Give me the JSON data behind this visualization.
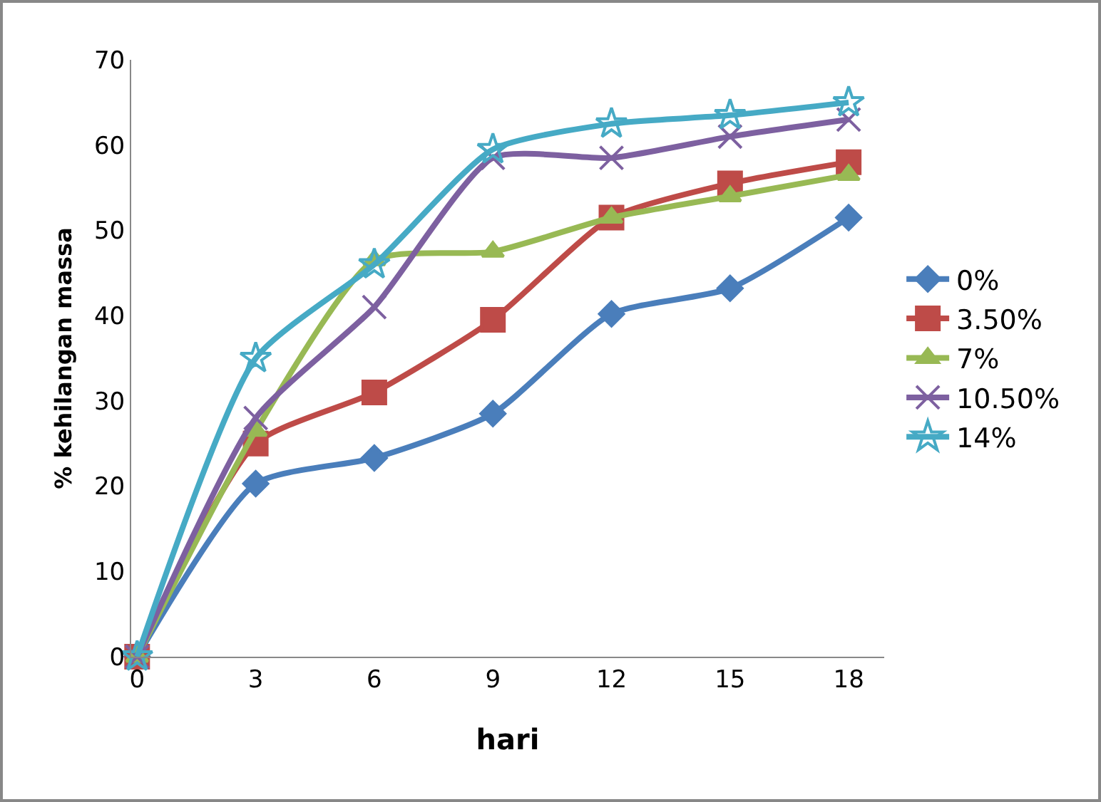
{
  "chart_data": {
    "type": "line",
    "xlabel": "hari",
    "ylabel": "% kehilangan massa",
    "categories": [
      "0",
      "3",
      "6",
      "9",
      "12",
      "15",
      "18"
    ],
    "ylim": [
      0,
      70
    ],
    "yticks": [
      0,
      10,
      20,
      30,
      40,
      50,
      60,
      70
    ],
    "grid": false,
    "legend": "right",
    "series": [
      {
        "name": "0%",
        "color": "#4a7ebb",
        "marker": "diamond",
        "values": [
          0,
          20.3,
          23.3,
          28.5,
          40.2,
          43.2,
          51.5
        ]
      },
      {
        "name": "3.50%",
        "color": "#be4b48",
        "marker": "square",
        "values": [
          0,
          25,
          31,
          39.5,
          51.5,
          55.5,
          58
        ]
      },
      {
        "name": "7%",
        "color": "#98b954",
        "marker": "triangle",
        "values": [
          0,
          26.5,
          46.5,
          47.5,
          51.5,
          54,
          56.5
        ]
      },
      {
        "name": "10.50%",
        "color": "#7d60a0",
        "marker": "cross",
        "values": [
          0,
          28,
          41,
          58.5,
          58.5,
          61,
          63
        ]
      },
      {
        "name": "14%",
        "color": "#46aac5",
        "marker": "star",
        "values": [
          0,
          35,
          46,
          59.5,
          62.5,
          63.5,
          65
        ]
      }
    ]
  }
}
